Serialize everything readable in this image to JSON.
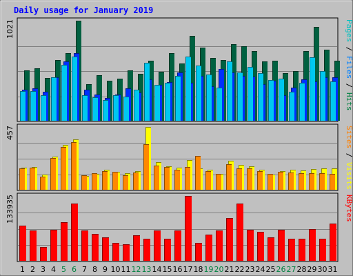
{
  "chart_data": {
    "type": "bar",
    "title": "Daily usage for January 2019",
    "title_color": "#0000ff",
    "categories": [
      "1",
      "2",
      "3",
      "4",
      "5",
      "6",
      "7",
      "8",
      "9",
      "10",
      "11",
      "12",
      "13",
      "14",
      "15",
      "16",
      "17",
      "18",
      "19",
      "20",
      "21",
      "22",
      "23",
      "24",
      "25",
      "26",
      "27",
      "28",
      "29",
      "30",
      "31"
    ],
    "weekend_days": [
      "5",
      "6",
      "12",
      "13",
      "19",
      "20",
      "26",
      "27"
    ],
    "weekend_color": "#008040",
    "weekday_color": "#000000",
    "panels": [
      {
        "id": "top",
        "max_label": "1021",
        "ylim": [
          0,
          1021
        ],
        "grid": true,
        "side_labels": [
          {
            "text": "Pages",
            "color": "#00c0c0"
          },
          {
            "text": " / ",
            "color": "#000000"
          },
          {
            "text": "Files",
            "color": "#0080ff"
          },
          {
            "text": " / ",
            "color": "#000000"
          },
          {
            "text": "Hits",
            "color": "#008040"
          }
        ],
        "series": [
          {
            "name": "Hits",
            "color": "#006040",
            "values": [
              520,
              535,
              440,
              620,
              695,
              1021,
              375,
              470,
              410,
              435,
              520,
              480,
              615,
              505,
              695,
              590,
              870,
              750,
              640,
              625,
              785,
              765,
              715,
              610,
              615,
              490,
              510,
              710,
              960,
              730,
              615
            ]
          },
          {
            "name": "Files",
            "color": "#0030ff",
            "values": [
              325,
              335,
              300,
              450,
              605,
              690,
              325,
              275,
              235,
              270,
              335,
              295,
              425,
              370,
              400,
              495,
              390,
              465,
              360,
              530,
              500,
              465,
              455,
              380,
              415,
              265,
              340,
              430,
              405,
              450,
              450
            ]
          },
          {
            "name": "Pages",
            "color": "#00c8f0",
            "values": [
              310,
              310,
              265,
              450,
              570,
              660,
              265,
              245,
              220,
              265,
              250,
              320,
              595,
              370,
              390,
              465,
              655,
              565,
              475,
              345,
              605,
              500,
              555,
              490,
              420,
              435,
              300,
              395,
              650,
              510,
              405
            ]
          }
        ]
      },
      {
        "id": "middle",
        "max_label": "457",
        "ylim": [
          0,
          457
        ],
        "grid": true,
        "side_labels": [
          {
            "text": "Sites",
            "color": "#ff8000"
          },
          {
            "text": " / ",
            "color": "#000000"
          },
          {
            "text": "Visits",
            "color": "#ffff00"
          }
        ],
        "series": [
          {
            "name": "Visits",
            "color": "#ffff00",
            "values": [
              165,
              170,
              112,
              245,
              330,
              368,
              105,
              120,
              150,
              135,
              122,
              138,
              457,
              205,
              175,
              162,
              218,
              160,
              150,
              120,
              213,
              185,
              175,
              150,
              115,
              140,
              150,
              145,
              156,
              160,
              161
            ]
          },
          {
            "name": "Sites",
            "color": "#ff8800",
            "values": [
              160,
              162,
              100,
              235,
              315,
              350,
              110,
              125,
              140,
              135,
              110,
              128,
              335,
              180,
              168,
              150,
              170,
              248,
              140,
              118,
              190,
              158,
              158,
              140,
              118,
              135,
              128,
              125,
              122,
              125,
              121
            ]
          }
        ]
      },
      {
        "id": "bottom",
        "max_label": "133935",
        "ylim": [
          0,
          133935
        ],
        "grid": true,
        "side_labels": [
          {
            "text": "KBytes",
            "color": "#ff0000"
          }
        ],
        "series": [
          {
            "name": "KBytes",
            "color": "#ff0000",
            "values": [
              74000,
              64000,
              29000,
              65000,
              80000,
              118000,
              63000,
              57000,
              49000,
              38000,
              35000,
              54000,
              47000,
              64000,
              47000,
              64000,
              133935,
              38000,
              55000,
              63000,
              89000,
              118000,
              65000,
              61000,
              49000,
              65000,
              47000,
              47000,
              66000,
              47000,
              77000
            ]
          }
        ]
      }
    ]
  }
}
